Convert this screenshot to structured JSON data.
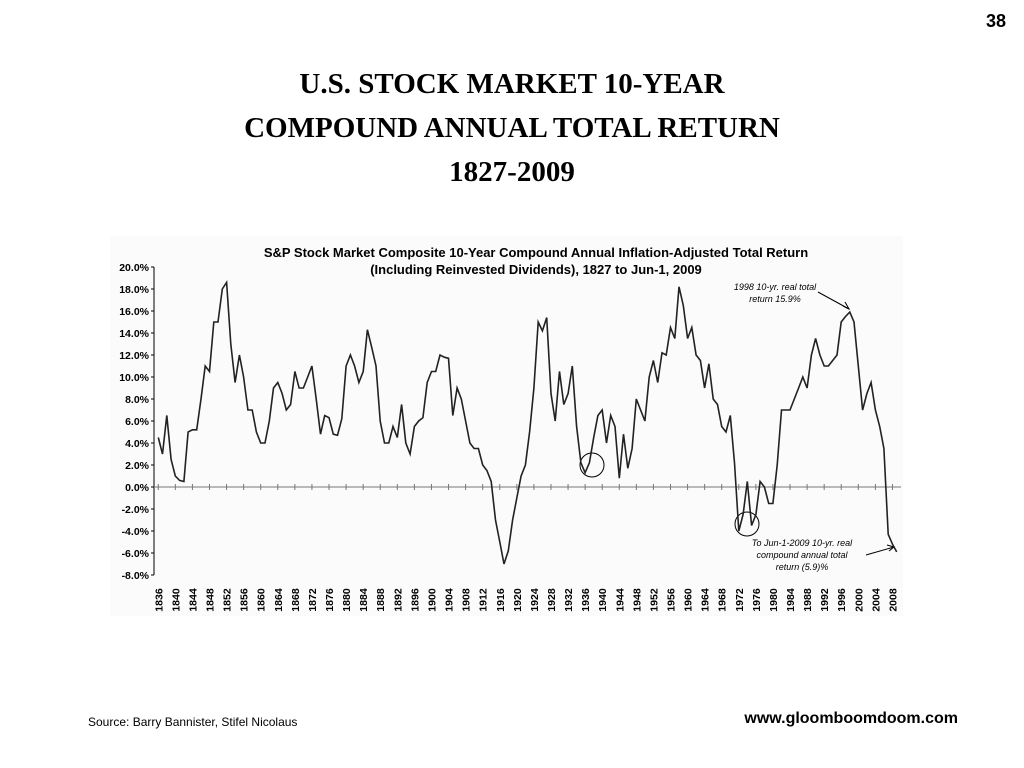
{
  "slide": {
    "page_number": "38",
    "title": [
      "U.S.  STOCK  MARKET  10-YEAR",
      "COMPOUND  ANNUAL  TOTAL  RETURN",
      "1827-2009"
    ],
    "source": "Source: Barry Bannister, Stifel Nicolaus",
    "website": "www.gloomboomdoom.com"
  },
  "chart_data": {
    "type": "line",
    "title": "S&P Stock Market Composite 10-Year Compound Annual Inflation-Adjusted Total Return",
    "subtitle": "(Including Reinvested Dividends), 1827 to Jun-1, 2009",
    "annotations": [
      [
        "1998 10-yr. real total",
        "return 15.9%"
      ],
      [
        "To Jun-1-2009 10-yr. real",
        "compound annual total",
        "return (5.9)%"
      ]
    ],
    "x": [
      1836,
      1837,
      1838,
      1839,
      1840,
      1841,
      1842,
      1843,
      1844,
      1845,
      1846,
      1847,
      1848,
      1849,
      1850,
      1851,
      1852,
      1853,
      1854,
      1855,
      1856,
      1857,
      1858,
      1859,
      1860,
      1861,
      1862,
      1863,
      1864,
      1865,
      1866,
      1867,
      1868,
      1869,
      1870,
      1871,
      1872,
      1873,
      1874,
      1875,
      1876,
      1877,
      1878,
      1879,
      1880,
      1881,
      1882,
      1883,
      1884,
      1885,
      1886,
      1887,
      1888,
      1889,
      1890,
      1891,
      1892,
      1893,
      1894,
      1895,
      1896,
      1897,
      1898,
      1899,
      1900,
      1901,
      1902,
      1903,
      1904,
      1905,
      1906,
      1907,
      1908,
      1909,
      1910,
      1911,
      1912,
      1913,
      1914,
      1915,
      1916,
      1917,
      1918,
      1919,
      1920,
      1921,
      1922,
      1923,
      1924,
      1925,
      1926,
      1927,
      1928,
      1929,
      1930,
      1931,
      1932,
      1933,
      1934,
      1935,
      1936,
      1937,
      1938,
      1939,
      1940,
      1941,
      1942,
      1943,
      1944,
      1945,
      1946,
      1947,
      1948,
      1949,
      1950,
      1951,
      1952,
      1953,
      1954,
      1955,
      1956,
      1957,
      1958,
      1959,
      1960,
      1961,
      1962,
      1963,
      1964,
      1965,
      1966,
      1967,
      1968,
      1969,
      1970,
      1971,
      1972,
      1973,
      1974,
      1975,
      1976,
      1977,
      1978,
      1979,
      1980,
      1981,
      1982,
      1983,
      1984,
      1985,
      1986,
      1987,
      1988,
      1989,
      1990,
      1991,
      1992,
      1993,
      1994,
      1995,
      1996,
      1997,
      1998,
      1999,
      2000,
      2001,
      2002,
      2003,
      2004,
      2005,
      2006,
      2007,
      2008,
      2009
    ],
    "series": [
      {
        "color": "#222222",
        "values": [
          4.5,
          3.0,
          6.5,
          2.5,
          1.0,
          0.6,
          0.5,
          5.0,
          5.2,
          5.2,
          8.0,
          11.0,
          10.5,
          15.0,
          15.0,
          18.0,
          18.6,
          13.0,
          9.5,
          12.0,
          10.0,
          7.0,
          7.0,
          5.0,
          4.0,
          4.0,
          6.0,
          9.0,
          9.5,
          8.5,
          7.0,
          7.5,
          10.5,
          9.0,
          9.0,
          10.0,
          11.0,
          8.0,
          4.8,
          6.5,
          6.3,
          4.8,
          4.7,
          6.2,
          11.0,
          12.0,
          11.0,
          9.5,
          10.5,
          14.3,
          12.7,
          11.0,
          6.0,
          4.0,
          4.0,
          5.5,
          4.5,
          7.5,
          4.0,
          3.0,
          5.5,
          6.0,
          6.3,
          9.5,
          10.5,
          10.5,
          12.0,
          11.8,
          11.7,
          6.5,
          9.0,
          8.0,
          6.0,
          4.0,
          3.5,
          3.5,
          2.0,
          1.5,
          0.5,
          -3.0,
          -5.0,
          -7.0,
          -5.8,
          -3.0,
          -1.0,
          1.0,
          2.0,
          5.0,
          9.0,
          15.0,
          14.2,
          15.4,
          8.5,
          6.0,
          10.5,
          7.5,
          8.5,
          11.0,
          5.5,
          2.2,
          1.3,
          2.2,
          4.5,
          6.5,
          7.0,
          4.0,
          6.5,
          5.5,
          0.8,
          4.8,
          1.7,
          3.5,
          8.0,
          7.0,
          6.0,
          10.0,
          11.5,
          9.5,
          12.2,
          12.0,
          14.5,
          13.5,
          18.2,
          16.5,
          13.5,
          14.5,
          12.0,
          11.5,
          9.0,
          11.2,
          8.0,
          7.5,
          5.5,
          5.0,
          6.5,
          2.2,
          -4.0,
          -2.5,
          0.5,
          -3.5,
          -2.5,
          0.5,
          0.0,
          -1.5,
          -1.5,
          2.0,
          7.0,
          7.0,
          7.0,
          8.0,
          9.0,
          10.0,
          9.0,
          12.0,
          13.5,
          12.0,
          11.0,
          11.0,
          11.5,
          12.0,
          15.0,
          15.5,
          15.9,
          15.0,
          11.0,
          7.0,
          8.5,
          9.5,
          7.0,
          5.5,
          3.5,
          -4.3,
          -5.2,
          -5.9
        ]
      }
    ],
    "xlim": [
      1835,
      2010
    ],
    "xticks": [
      1836,
      1840,
      1844,
      1848,
      1852,
      1856,
      1860,
      1864,
      1868,
      1872,
      1876,
      1880,
      1884,
      1888,
      1892,
      1896,
      1900,
      1904,
      1908,
      1912,
      1916,
      1920,
      1924,
      1928,
      1932,
      1936,
      1940,
      1944,
      1948,
      1952,
      1956,
      1960,
      1964,
      1968,
      1972,
      1976,
      1980,
      1984,
      1988,
      1992,
      1996,
      2000,
      2004,
      2008
    ],
    "ylim": [
      -8,
      20
    ],
    "yticks": [
      {
        "value": 20,
        "label": "20.0%"
      },
      {
        "value": 18,
        "label": "18.0%"
      },
      {
        "value": 16,
        "label": "16.0%"
      },
      {
        "value": 14,
        "label": "14.0%"
      },
      {
        "value": 12,
        "label": "12.0%"
      },
      {
        "value": 10,
        "label": "10.0%"
      },
      {
        "value": 8,
        "label": "8.0%"
      },
      {
        "value": 6,
        "label": "6.0%"
      },
      {
        "value": 4,
        "label": "4.0%"
      },
      {
        "value": 2,
        "label": "2.0%"
      },
      {
        "value": 0,
        "label": "0.0%"
      },
      {
        "value": -2,
        "label": "-2.0%"
      },
      {
        "value": -4,
        "label": "-4.0%"
      },
      {
        "value": -6,
        "label": "-6.0%"
      },
      {
        "value": -8,
        "label": "-8.0%"
      }
    ],
    "grid": false
  }
}
